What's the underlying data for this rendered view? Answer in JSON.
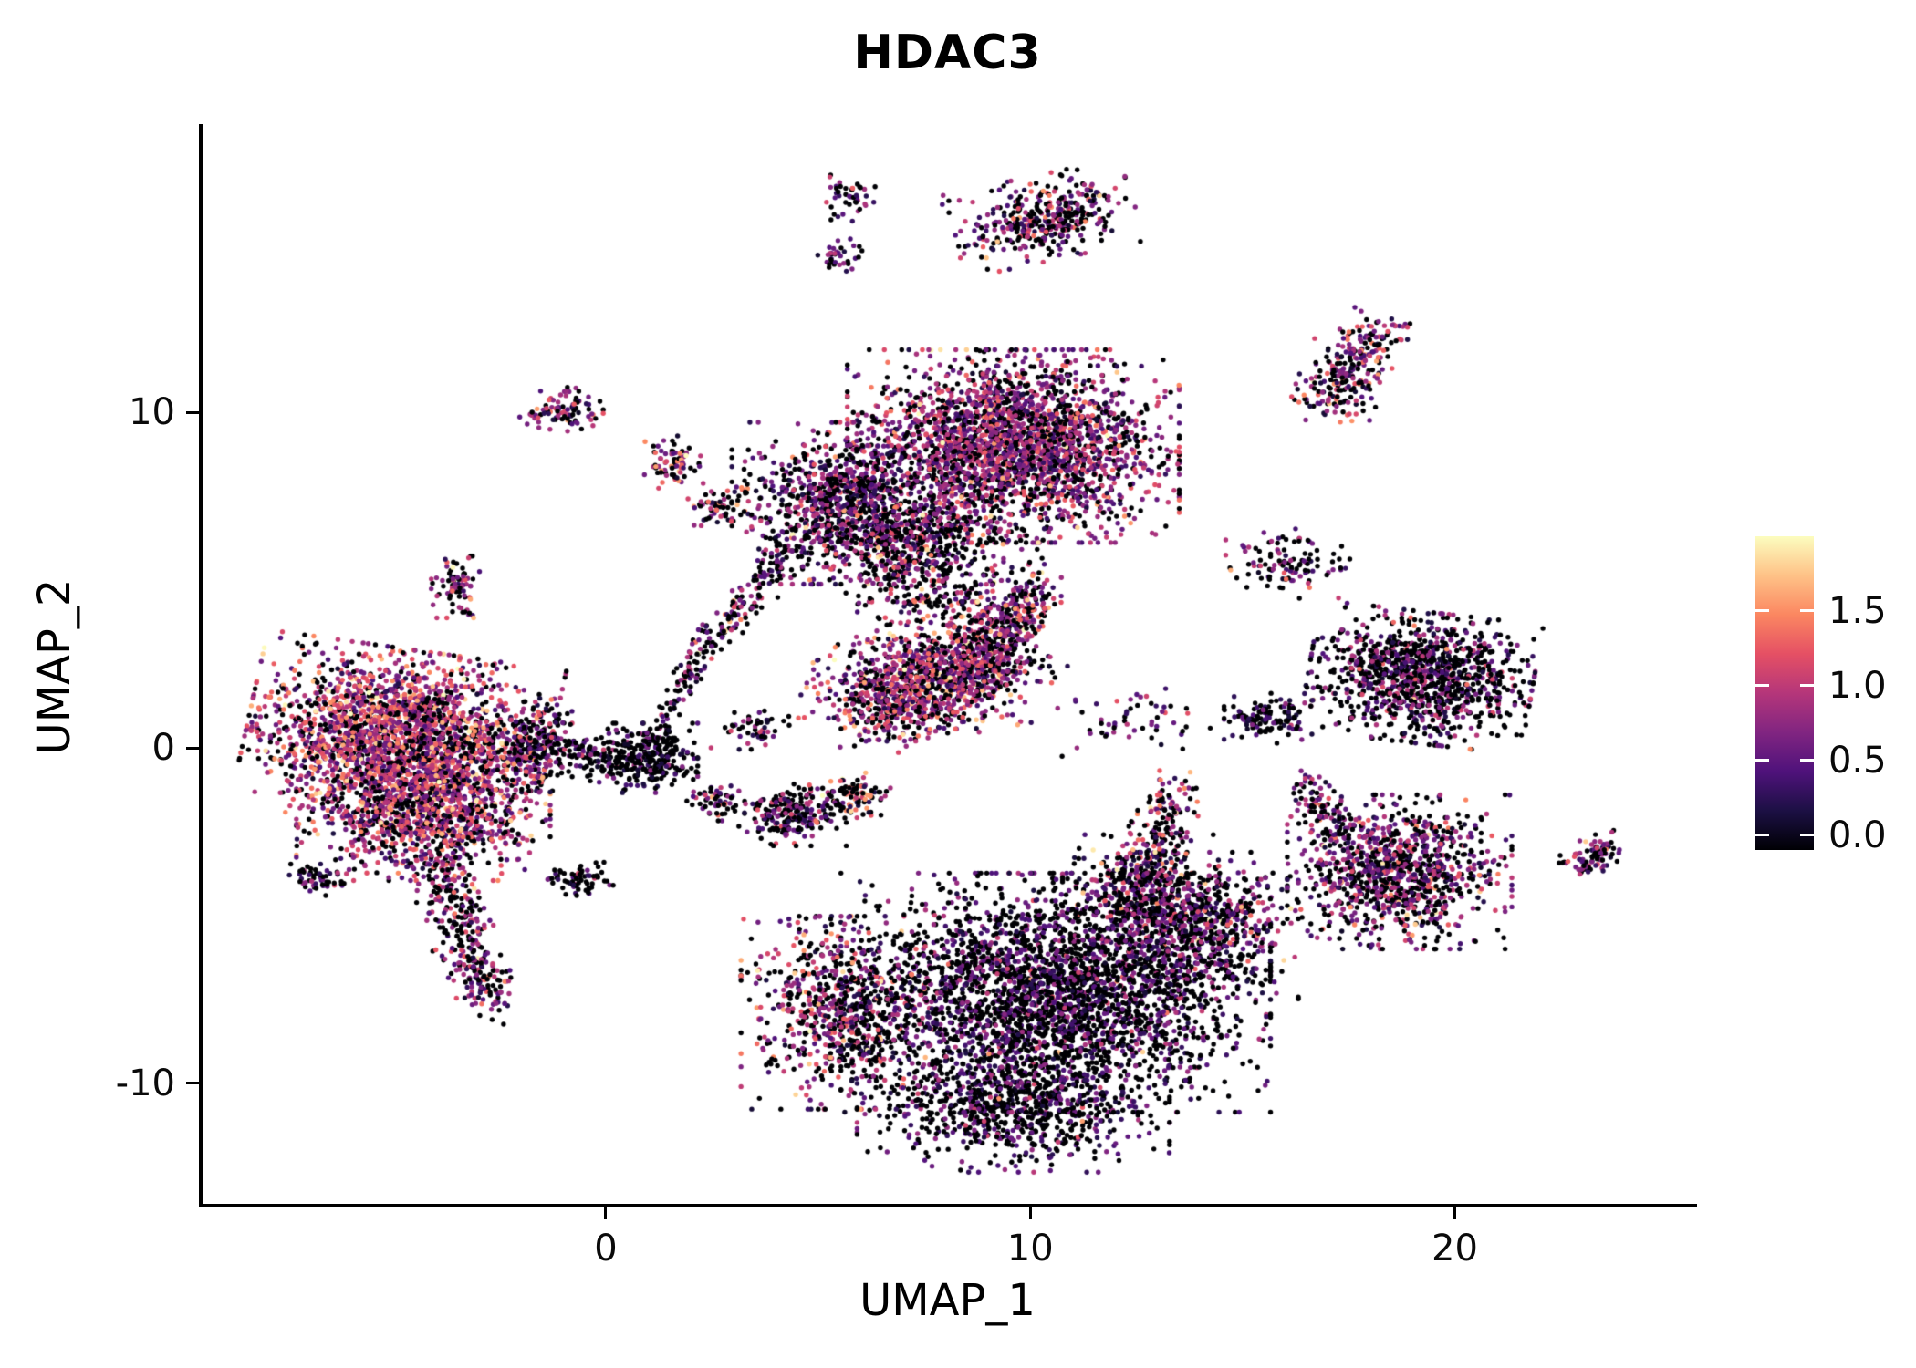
{
  "chart_data": {
    "type": "scatter",
    "title": "HDAC3",
    "xlabel": "UMAP_1",
    "ylabel": "UMAP_2",
    "xlim": [
      -9.5,
      25.6
    ],
    "ylim": [
      -13.6,
      18.5
    ],
    "x_ticks": [
      0,
      10,
      20
    ],
    "x_tick_labels": [
      "0",
      "10",
      "20"
    ],
    "y_ticks": [
      10,
      0,
      -10
    ],
    "y_tick_labels": [
      "10",
      "0",
      "-10"
    ],
    "grid": false,
    "background": "#ffffff",
    "axis_color": "#000000",
    "point_radius_px": 2.7,
    "seed": 42,
    "legend_position": "right",
    "colorbar": {
      "vmin": 0.0,
      "vmax": 1.9,
      "tick_values": [
        0.0,
        0.5,
        1.0,
        1.5
      ],
      "tick_labels": [
        "0.0",
        "0.5",
        "1.0",
        "1.5"
      ],
      "stops": [
        "#000004",
        "#1c1044",
        "#4f127b",
        "#812581",
        "#b5367a",
        "#e55064",
        "#fb8761",
        "#fec287",
        "#fcfdbf"
      ]
    },
    "clusters": [
      {
        "name": "left-main-core",
        "kind": "gauss",
        "cx": -4.9,
        "cy": 0.3,
        "sx": 1.55,
        "sy": 1.15,
        "rot": -10,
        "n": 2300,
        "expr": {
          "p0": 0.22,
          "mean": 0.95,
          "sd": 0.35,
          "pHigh": 0.06
        }
      },
      {
        "name": "left-main-lower",
        "kind": "gauss",
        "cx": -4.3,
        "cy": -2.0,
        "sx": 1.3,
        "sy": 0.85,
        "rot": 0,
        "n": 900,
        "expr": {
          "p0": 0.3,
          "mean": 0.85,
          "sd": 0.35,
          "pHigh": 0.04
        }
      },
      {
        "name": "left-tail",
        "kind": "line",
        "x1": -4.0,
        "y1": -3.2,
        "x2": -2.7,
        "y2": -7.6,
        "w": 0.33,
        "n": 340,
        "expr": {
          "p0": 0.45,
          "mean": 0.7,
          "sd": 0.3,
          "pHigh": 0.02
        }
      },
      {
        "name": "left-spur",
        "kind": "gauss",
        "cx": -6.8,
        "cy": -3.9,
        "sx": 0.3,
        "sy": 0.22,
        "rot": 0,
        "n": 55,
        "expr": {
          "p0": 0.5,
          "mean": 0.6,
          "sd": 0.3,
          "pHigh": 0
        }
      },
      {
        "name": "left-east-edge",
        "kind": "gauss",
        "cx": -1.6,
        "cy": 0.1,
        "sx": 0.5,
        "sy": 0.6,
        "rot": 0,
        "n": 260,
        "expr": {
          "p0": 0.55,
          "mean": 0.6,
          "sd": 0.3,
          "pHigh": 0.01
        }
      },
      {
        "name": "left-upper-small",
        "kind": "gauss",
        "cx": -3.5,
        "cy": 4.8,
        "sx": 0.28,
        "sy": 0.4,
        "rot": 0,
        "n": 80,
        "expr": {
          "p0": 0.35,
          "mean": 0.8,
          "sd": 0.35,
          "pHigh": 0.05
        }
      },
      {
        "name": "top-main-east",
        "kind": "gauss",
        "cx": 9.6,
        "cy": 9.0,
        "sx": 1.7,
        "sy": 1.25,
        "rot": 0,
        "n": 2600,
        "expr": {
          "p0": 0.3,
          "mean": 0.8,
          "sd": 0.3,
          "pHigh": 0.035
        }
      },
      {
        "name": "top-main-west",
        "kind": "gauss",
        "cx": 5.5,
        "cy": 7.3,
        "sx": 1.1,
        "sy": 1.05,
        "rot": 0,
        "n": 950,
        "expr": {
          "p0": 0.45,
          "mean": 0.65,
          "sd": 0.3,
          "pHigh": 0.02
        }
      },
      {
        "name": "top-main-south",
        "kind": "gauss",
        "cx": 7.3,
        "cy": 6.2,
        "sx": 0.9,
        "sy": 0.8,
        "rot": 0,
        "n": 450,
        "expr": {
          "p0": 0.5,
          "mean": 0.7,
          "sd": 0.3,
          "pHigh": 0.03
        }
      },
      {
        "name": "top-main-below",
        "kind": "gauss",
        "cx": 7.8,
        "cy": 4.9,
        "sx": 1.1,
        "sy": 0.8,
        "rot": 0,
        "n": 260,
        "expr": {
          "p0": 0.45,
          "mean": 0.8,
          "sd": 0.4,
          "pHigh": 0.06
        }
      },
      {
        "name": "mid-band",
        "kind": "line",
        "x1": 6.0,
        "y1": 1.4,
        "x2": 9.3,
        "y2": 2.6,
        "w": 0.72,
        "n": 1250,
        "expr": {
          "p0": 0.3,
          "mean": 0.85,
          "sd": 0.35,
          "pHigh": 0.05
        }
      },
      {
        "name": "mid-band-arm",
        "kind": "line",
        "x1": 8.8,
        "y1": 2.8,
        "x2": 10.1,
        "y2": 4.7,
        "w": 0.38,
        "n": 300,
        "expr": {
          "p0": 0.35,
          "mean": 0.8,
          "sd": 0.3,
          "pHigh": 0.04
        }
      },
      {
        "name": "bottom-main",
        "kind": "gauss",
        "cx": 10.6,
        "cy": -7.3,
        "sx": 2.2,
        "sy": 1.55,
        "rot": 0,
        "n": 3100,
        "expr": {
          "p0": 0.6,
          "mean": 0.55,
          "sd": 0.25,
          "pHigh": 0.012
        }
      },
      {
        "name": "bottom-west-lobe",
        "kind": "gauss",
        "cx": 5.6,
        "cy": -7.9,
        "sx": 1.05,
        "sy": 1.25,
        "rot": 0,
        "n": 750,
        "expr": {
          "p0": 0.42,
          "mean": 0.8,
          "sd": 0.4,
          "pHigh": 0.07
        }
      },
      {
        "name": "bottom-south-lobe",
        "kind": "gauss",
        "cx": 9.6,
        "cy": -10.7,
        "sx": 1.6,
        "sy": 0.85,
        "rot": 0,
        "n": 800,
        "expr": {
          "p0": 0.62,
          "mean": 0.5,
          "sd": 0.25,
          "pHigh": 0.01
        }
      },
      {
        "name": "bottom-east-arm",
        "kind": "gauss",
        "cx": 13.9,
        "cy": -5.3,
        "sx": 1.05,
        "sy": 0.95,
        "rot": 0,
        "n": 650,
        "expr": {
          "p0": 0.5,
          "mean": 0.65,
          "sd": 0.3,
          "pHigh": 0.03
        }
      },
      {
        "name": "bottom-north-arm",
        "kind": "gauss",
        "cx": 12.6,
        "cy": -4.2,
        "sx": 0.8,
        "sy": 0.7,
        "rot": 0,
        "n": 350,
        "expr": {
          "p0": 0.45,
          "mean": 0.7,
          "sd": 0.35,
          "pHigh": 0.05
        }
      },
      {
        "name": "bottom-north-column",
        "kind": "line",
        "x1": 12.9,
        "y1": -3.6,
        "x2": 13.3,
        "y2": -1.2,
        "w": 0.33,
        "n": 160,
        "expr": {
          "p0": 0.4,
          "mean": 0.8,
          "sd": 0.4,
          "pHigh": 0.08
        }
      },
      {
        "name": "right-upper",
        "kind": "gauss",
        "cx": 19.2,
        "cy": 2.1,
        "sx": 1.15,
        "sy": 0.85,
        "rot": -8,
        "n": 1150,
        "expr": {
          "p0": 0.55,
          "mean": 0.6,
          "sd": 0.3,
          "pHigh": 0.015
        }
      },
      {
        "name": "right-lower",
        "kind": "gauss",
        "cx": 18.7,
        "cy": -3.7,
        "sx": 1.15,
        "sy": 1.0,
        "rot": 0,
        "n": 1000,
        "expr": {
          "p0": 0.42,
          "mean": 0.7,
          "sd": 0.35,
          "pHigh": 0.03
        }
      },
      {
        "name": "right-lower-spur",
        "kind": "line",
        "x1": 17.4,
        "y1": -2.6,
        "x2": 16.4,
        "y2": -1.1,
        "w": 0.3,
        "n": 110,
        "expr": {
          "p0": 0.45,
          "mean": 0.7,
          "sd": 0.3,
          "pHigh": 0.01
        }
      },
      {
        "name": "small-mid-right",
        "kind": "gauss",
        "cx": 15.6,
        "cy": 0.9,
        "sx": 0.45,
        "sy": 0.33,
        "rot": 0,
        "n": 130,
        "expr": {
          "p0": 0.6,
          "mean": 0.5,
          "sd": 0.25,
          "pHigh": 0.01
        }
      },
      {
        "name": "mid-right-sparse",
        "kind": "gauss",
        "cx": 12.4,
        "cy": 0.9,
        "sx": 0.8,
        "sy": 0.5,
        "rot": 0,
        "n": 55,
        "expr": {
          "p0": 0.5,
          "mean": 0.7,
          "sd": 0.3,
          "pHigh": 0.02
        }
      },
      {
        "name": "top-right-small",
        "kind": "line",
        "x1": 17.0,
        "y1": 10.3,
        "x2": 18.2,
        "y2": 12.4,
        "w": 0.42,
        "n": 270,
        "expr": {
          "p0": 0.35,
          "mean": 0.8,
          "sd": 0.4,
          "pHigh": 0.06
        }
      },
      {
        "name": "top-small-main",
        "kind": "gauss",
        "cx": 10.3,
        "cy": 15.8,
        "sx": 0.95,
        "sy": 0.55,
        "rot": 15,
        "n": 380,
        "expr": {
          "p0": 0.4,
          "mean": 0.7,
          "sd": 0.35,
          "pHigh": 0.03
        }
      },
      {
        "name": "top-tiny-upper",
        "kind": "gauss",
        "cx": 5.7,
        "cy": 16.4,
        "sx": 0.28,
        "sy": 0.3,
        "rot": 0,
        "n": 45,
        "expr": {
          "p0": 0.35,
          "mean": 0.75,
          "sd": 0.35,
          "pHigh": 0.03
        }
      },
      {
        "name": "top-tiny-lower",
        "kind": "gauss",
        "cx": 5.5,
        "cy": 14.7,
        "sx": 0.25,
        "sy": 0.25,
        "rot": 0,
        "n": 35,
        "expr": {
          "p0": 0.4,
          "mean": 0.7,
          "sd": 0.3,
          "pHigh": 0
        }
      },
      {
        "name": "nw-small-pair",
        "kind": "gauss",
        "cx": -0.9,
        "cy": 10.1,
        "sx": 0.5,
        "sy": 0.28,
        "rot": 10,
        "n": 95,
        "expr": {
          "p0": 0.35,
          "mean": 0.8,
          "sd": 0.35,
          "pHigh": 0.05
        }
      },
      {
        "name": "small-1-8",
        "kind": "gauss",
        "cx": 1.6,
        "cy": 8.5,
        "sx": 0.3,
        "sy": 0.35,
        "rot": 0,
        "n": 75,
        "expr": {
          "p0": 0.35,
          "mean": 0.85,
          "sd": 0.4,
          "pHigh": 0.06
        }
      },
      {
        "name": "small-2-7",
        "kind": "gauss",
        "cx": 2.6,
        "cy": 7.2,
        "sx": 0.33,
        "sy": 0.3,
        "rot": 0,
        "n": 60,
        "expr": {
          "p0": 0.4,
          "mean": 0.75,
          "sd": 0.35,
          "pHigh": 0.04
        }
      },
      {
        "name": "center-blob",
        "kind": "gauss",
        "cx": 0.9,
        "cy": -0.3,
        "sx": 0.55,
        "sy": 0.45,
        "rot": 0,
        "n": 320,
        "expr": {
          "p0": 0.7,
          "mean": 0.45,
          "sd": 0.25,
          "pHigh": 0.01
        }
      },
      {
        "name": "center-west-sparse",
        "kind": "gauss",
        "cx": -0.6,
        "cy": -0.2,
        "sx": 0.5,
        "sy": 0.3,
        "rot": 0,
        "n": 70,
        "expr": {
          "p0": 0.6,
          "mean": 0.5,
          "sd": 0.3,
          "pHigh": 0
        }
      },
      {
        "name": "center-south-tiny",
        "kind": "gauss",
        "cx": -0.7,
        "cy": -3.9,
        "sx": 0.38,
        "sy": 0.22,
        "rot": 0,
        "n": 70,
        "expr": {
          "p0": 0.65,
          "mean": 0.5,
          "sd": 0.25,
          "pHigh": 0
        }
      },
      {
        "name": "small-2-neg1",
        "kind": "gauss",
        "cx": 2.6,
        "cy": -1.6,
        "sx": 0.3,
        "sy": 0.25,
        "rot": 0,
        "n": 60,
        "expr": {
          "p0": 0.5,
          "mean": 0.7,
          "sd": 0.35,
          "pHigh": 0.05
        }
      },
      {
        "name": "small-4-neg2",
        "kind": "gauss",
        "cx": 4.4,
        "cy": -2.0,
        "sx": 0.55,
        "sy": 0.4,
        "rot": 0,
        "n": 230,
        "expr": {
          "p0": 0.55,
          "mean": 0.6,
          "sd": 0.3,
          "pHigh": 0.03
        }
      },
      {
        "name": "small-6-neg1",
        "kind": "gauss",
        "cx": 5.9,
        "cy": -1.4,
        "sx": 0.35,
        "sy": 0.3,
        "rot": 0,
        "n": 95,
        "expr": {
          "p0": 0.3,
          "mean": 0.95,
          "sd": 0.45,
          "pHigh": 0.12
        }
      },
      {
        "name": "small-3-0",
        "kind": "gauss",
        "cx": 3.4,
        "cy": 0.6,
        "sx": 0.4,
        "sy": 0.28,
        "rot": 0,
        "n": 50,
        "expr": {
          "p0": 0.5,
          "mean": 0.65,
          "sd": 0.3,
          "pHigh": 0.02
        }
      },
      {
        "name": "diag-trail",
        "kind": "line",
        "x1": 1.9,
        "y1": 2.3,
        "x2": 4.3,
        "y2": 5.9,
        "w": 0.22,
        "n": 170,
        "expr": {
          "p0": 0.55,
          "mean": 0.6,
          "sd": 0.3,
          "pHigh": 0.02
        }
      },
      {
        "name": "center-ne-trail",
        "kind": "line",
        "x1": 1.1,
        "y1": 0.1,
        "x2": 2.0,
        "y2": 2.3,
        "w": 0.15,
        "n": 60,
        "expr": {
          "p0": 0.6,
          "mean": 0.55,
          "sd": 0.25,
          "pHigh": 0
        }
      },
      {
        "name": "far-right-tiny",
        "kind": "line",
        "x1": 22.9,
        "y1": -3.6,
        "x2": 23.6,
        "y2": -2.9,
        "w": 0.25,
        "n": 90,
        "expr": {
          "p0": 0.4,
          "mean": 0.7,
          "sd": 0.3,
          "pHigh": 0.03
        }
      },
      {
        "name": "right-top-sparse",
        "kind": "gauss",
        "cx": 16.1,
        "cy": 5.5,
        "sx": 0.65,
        "sy": 0.45,
        "rot": 0,
        "n": 110,
        "expr": {
          "p0": 0.45,
          "mean": 0.7,
          "sd": 0.3,
          "pHigh": 0.02
        }
      }
    ]
  }
}
